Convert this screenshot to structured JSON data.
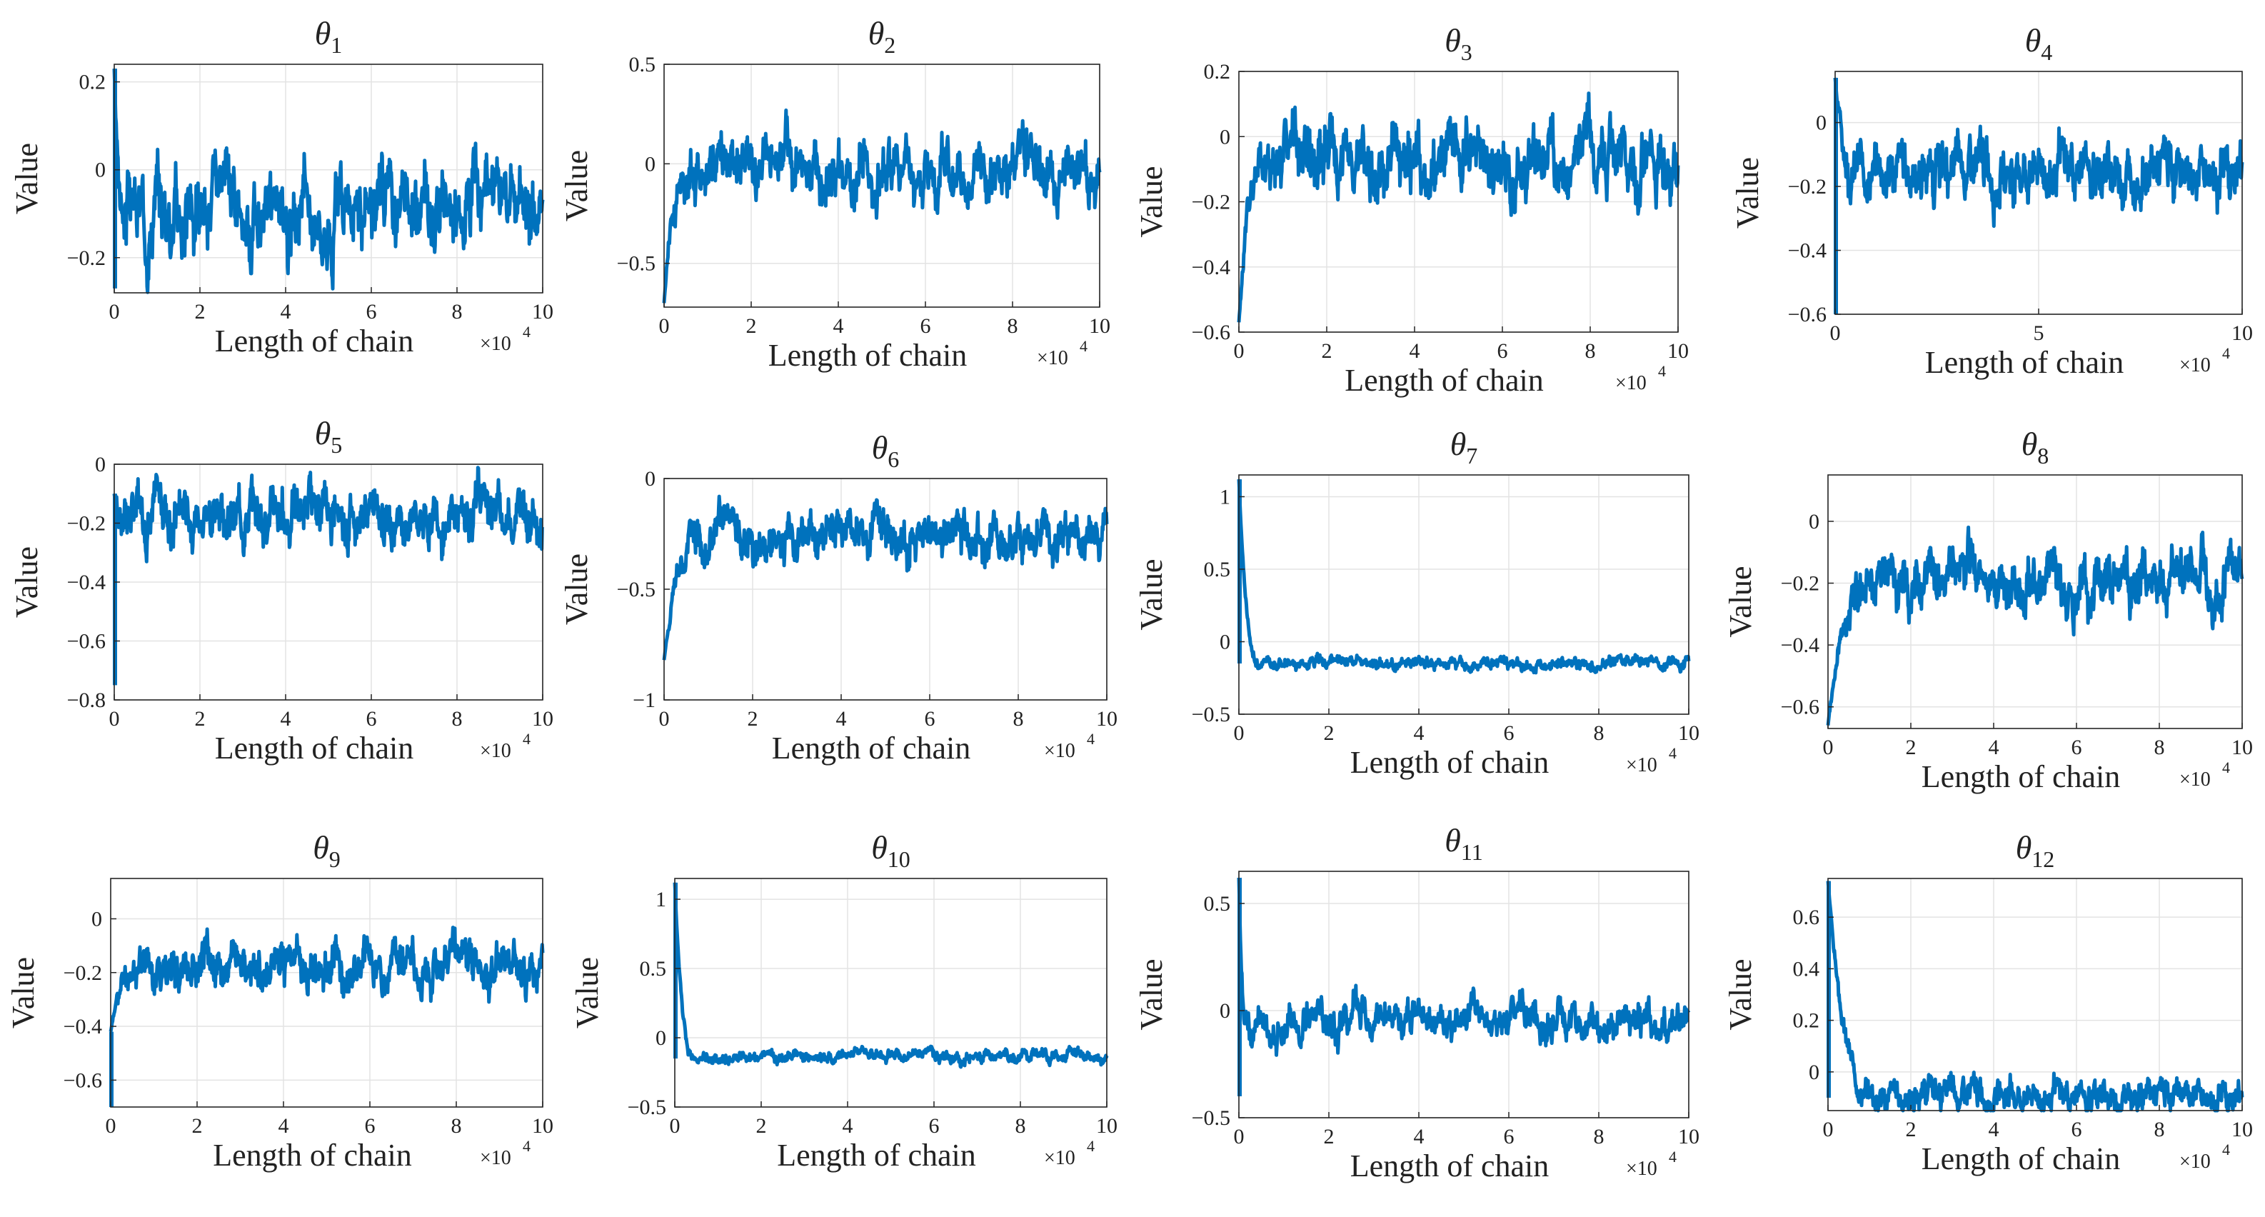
{
  "figure": {
    "line_color": "#0072BD",
    "grid_color": "#e3e3e3",
    "axis_color": "#262626"
  },
  "chart_data": [
    {
      "type": "line",
      "title": "θ1",
      "title_base": "θ",
      "title_sub": "1",
      "xlabel": "Length of chain",
      "ylabel": "Value",
      "x_multiplier": "×10",
      "x_multiplier_exp": "4",
      "xlim": [
        0,
        10
      ],
      "ylim": [
        -0.28,
        0.24
      ],
      "xticks": [
        0,
        2,
        4,
        6,
        8,
        10
      ],
      "xtick_labels": [
        "0",
        "2",
        "4",
        "6",
        "8",
        "10"
      ],
      "yticks": [
        -0.2,
        0,
        0.2
      ],
      "ytick_labels": [
        "−0.2",
        "0",
        "0.2"
      ],
      "trace": {
        "start": 0.23,
        "burn_min": -0.27,
        "mean": -0.09,
        "spread": 0.05,
        "burn_in": 0.3
      }
    },
    {
      "type": "line",
      "title": "θ2",
      "title_base": "θ",
      "title_sub": "2",
      "xlabel": "Length of chain",
      "ylabel": "Value",
      "x_multiplier": "×10",
      "x_multiplier_exp": "4",
      "xlim": [
        0,
        10
      ],
      "ylim": [
        -0.72,
        0.5
      ],
      "xticks": [
        0,
        2,
        4,
        6,
        8,
        10
      ],
      "xtick_labels": [
        "0",
        "2",
        "4",
        "6",
        "8",
        "10"
      ],
      "yticks": [
        -0.5,
        0,
        0.5
      ],
      "ytick_labels": [
        "−0.5",
        "0",
        "0.5"
      ],
      "trace": {
        "start": -0.7,
        "burn_min": -0.7,
        "mean": -0.03,
        "spread": 0.08,
        "burn_in": 0.6
      }
    },
    {
      "type": "line",
      "title": "θ3",
      "title_base": "θ",
      "title_sub": "3",
      "xlabel": "Length of chain",
      "ylabel": "Value",
      "x_multiplier": "×10",
      "x_multiplier_exp": "4",
      "xlim": [
        0,
        10
      ],
      "ylim": [
        -0.6,
        0.2
      ],
      "xticks": [
        0,
        2,
        4,
        6,
        8,
        10
      ],
      "xtick_labels": [
        "0",
        "2",
        "4",
        "6",
        "8",
        "10"
      ],
      "yticks": [
        -0.6,
        -0.4,
        -0.2,
        0,
        0.2
      ],
      "ytick_labels": [
        "−0.6",
        "−0.4",
        "−0.2",
        "0",
        "0.2"
      ],
      "trace": {
        "start": -0.57,
        "burn_min": -0.57,
        "mean": -0.07,
        "spread": 0.06,
        "burn_in": 0.8
      }
    },
    {
      "type": "line",
      "title": "θ4",
      "title_base": "θ",
      "title_sub": "4",
      "xlabel": "Length of chain",
      "ylabel": "Value",
      "x_multiplier": "×10",
      "x_multiplier_exp": "4",
      "xlim": [
        0,
        10
      ],
      "ylim": [
        -0.6,
        0.16
      ],
      "xticks": [
        0,
        5,
        10
      ],
      "xtick_labels": [
        "0",
        "5",
        "10"
      ],
      "yticks": [
        -0.6,
        -0.4,
        -0.2,
        0
      ],
      "ytick_labels": [
        "−0.6",
        "−0.4",
        "−0.2",
        "0"
      ],
      "trace": {
        "start": 0.14,
        "burn_min": -0.6,
        "mean": -0.15,
        "spread": 0.05,
        "burn_in": 0.6
      }
    },
    {
      "type": "line",
      "title": "θ5",
      "title_base": "θ",
      "title_sub": "5",
      "xlabel": "Length of chain",
      "ylabel": "Value",
      "x_multiplier": "×10",
      "x_multiplier_exp": "4",
      "xlim": [
        0,
        10
      ],
      "ylim": [
        -0.8,
        0
      ],
      "xticks": [
        0,
        2,
        4,
        6,
        8,
        10
      ],
      "xtick_labels": [
        "0",
        "2",
        "4",
        "6",
        "8",
        "10"
      ],
      "yticks": [
        -0.8,
        -0.6,
        -0.4,
        -0.2,
        0
      ],
      "ytick_labels": [
        "−0.8",
        "−0.6",
        "−0.4",
        "−0.2",
        "0"
      ],
      "trace": {
        "start": -0.1,
        "burn_min": -0.75,
        "mean": -0.16,
        "spread": 0.05,
        "burn_in": 0.2
      }
    },
    {
      "type": "line",
      "title": "θ6",
      "title_base": "θ",
      "title_sub": "6",
      "xlabel": "Length of chain",
      "ylabel": "Value",
      "x_multiplier": "×10",
      "x_multiplier_exp": "4",
      "xlim": [
        0,
        10
      ],
      "ylim": [
        -1,
        0
      ],
      "xticks": [
        0,
        2,
        4,
        6,
        8,
        10
      ],
      "xtick_labels": [
        "0",
        "2",
        "4",
        "6",
        "8",
        "10"
      ],
      "yticks": [
        -1,
        -0.5,
        0
      ],
      "ytick_labels": [
        "−1",
        "−0.5",
        "0"
      ],
      "trace": {
        "start": -0.82,
        "burn_min": -0.82,
        "mean": -0.26,
        "spread": 0.06,
        "burn_in": 1.0
      }
    },
    {
      "type": "line",
      "title": "θ7",
      "title_base": "θ",
      "title_sub": "7",
      "xlabel": "Length of chain",
      "ylabel": "Value",
      "x_multiplier": "×10",
      "x_multiplier_exp": "4",
      "xlim": [
        0,
        10
      ],
      "ylim": [
        -0.5,
        1.15
      ],
      "xticks": [
        0,
        2,
        4,
        6,
        8,
        10
      ],
      "xtick_labels": [
        "0",
        "2",
        "4",
        "6",
        "8",
        "10"
      ],
      "yticks": [
        -0.5,
        0,
        0.5,
        1
      ],
      "ytick_labels": [
        "−0.5",
        "0",
        "0.5",
        "1"
      ],
      "trace": {
        "start": 1.12,
        "burn_min": -0.15,
        "mean": -0.15,
        "spread": 0.025,
        "burn_in": 0.5
      }
    },
    {
      "type": "line",
      "title": "θ8",
      "title_base": "θ",
      "title_sub": "8",
      "xlabel": "Length of chain",
      "ylabel": "Value",
      "x_multiplier": "×10",
      "x_multiplier_exp": "4",
      "xlim": [
        0,
        10
      ],
      "ylim": [
        -0.67,
        0.15
      ],
      "xticks": [
        0,
        2,
        4,
        6,
        8,
        10
      ],
      "xtick_labels": [
        "0",
        "2",
        "4",
        "6",
        "8",
        "10"
      ],
      "yticks": [
        -0.6,
        -0.4,
        -0.2,
        0
      ],
      "ytick_labels": [
        "−0.6",
        "−0.4",
        "−0.2",
        "0"
      ],
      "trace": {
        "start": -0.66,
        "burn_min": -0.66,
        "mean": -0.19,
        "spread": 0.05,
        "burn_in": 1.2
      }
    },
    {
      "type": "line",
      "title": "θ9",
      "title_base": "θ",
      "title_sub": "9",
      "xlabel": "Length of chain",
      "ylabel": "Value",
      "x_multiplier": "×10",
      "x_multiplier_exp": "4",
      "xlim": [
        0,
        10
      ],
      "ylim": [
        -0.7,
        0.15
      ],
      "xticks": [
        0,
        2,
        4,
        6,
        8,
        10
      ],
      "xtick_labels": [
        "0",
        "2",
        "4",
        "6",
        "8",
        "10"
      ],
      "yticks": [
        -0.6,
        -0.4,
        -0.2,
        0
      ],
      "ytick_labels": [
        "−0.6",
        "−0.4",
        "−0.2",
        "0"
      ],
      "trace": {
        "start": -0.42,
        "burn_min": -0.7,
        "mean": -0.17,
        "spread": 0.045,
        "burn_in": 0.8
      }
    },
    {
      "type": "line",
      "title": "θ10",
      "title_base": "θ",
      "title_sub": "10",
      "xlabel": "Length of chain",
      "ylabel": "Value",
      "x_multiplier": "×10",
      "x_multiplier_exp": "4",
      "xlim": [
        0,
        10
      ],
      "ylim": [
        -0.5,
        1.15
      ],
      "xticks": [
        0,
        2,
        4,
        6,
        8,
        10
      ],
      "xtick_labels": [
        "0",
        "2",
        "4",
        "6",
        "8",
        "10"
      ],
      "yticks": [
        -0.5,
        0,
        0.5,
        1
      ],
      "ytick_labels": [
        "−0.5",
        "0",
        "0.5",
        "1"
      ],
      "trace": {
        "start": 1.12,
        "burn_min": -0.15,
        "mean": -0.14,
        "spread": 0.025,
        "burn_in": 0.5
      }
    },
    {
      "type": "line",
      "title": "θ11",
      "title_base": "θ",
      "title_sub": "11",
      "xlabel": "Length of chain",
      "ylabel": "Value",
      "x_multiplier": "×10",
      "x_multiplier_exp": "4",
      "xlim": [
        0,
        10
      ],
      "ylim": [
        -0.5,
        0.65
      ],
      "xticks": [
        0,
        2,
        4,
        6,
        8,
        10
      ],
      "xtick_labels": [
        "0",
        "2",
        "4",
        "6",
        "8",
        "10"
      ],
      "yticks": [
        -0.5,
        0,
        0.5
      ],
      "ytick_labels": [
        "−0.5",
        "0",
        "0.5"
      ],
      "trace": {
        "start": 0.62,
        "burn_min": -0.4,
        "mean": -0.06,
        "spread": 0.05,
        "burn_in": 0.2
      }
    },
    {
      "type": "line",
      "title": "θ12",
      "title_base": "θ",
      "title_sub": "12",
      "xlabel": "Length of chain",
      "ylabel": "Value",
      "x_multiplier": "×10",
      "x_multiplier_exp": "4",
      "xlim": [
        0,
        10
      ],
      "ylim": [
        -0.15,
        0.75
      ],
      "xticks": [
        0,
        2,
        4,
        6,
        8,
        10
      ],
      "xtick_labels": [
        "0",
        "2",
        "4",
        "6",
        "8",
        "10"
      ],
      "yticks": [
        0,
        0.2,
        0.4,
        0.6
      ],
      "ytick_labels": [
        "0",
        "0.2",
        "0.4",
        "0.6"
      ],
      "trace": {
        "start": 0.74,
        "burn_min": -0.1,
        "mean": -0.09,
        "spread": 0.035,
        "burn_in": 1.2
      }
    }
  ]
}
